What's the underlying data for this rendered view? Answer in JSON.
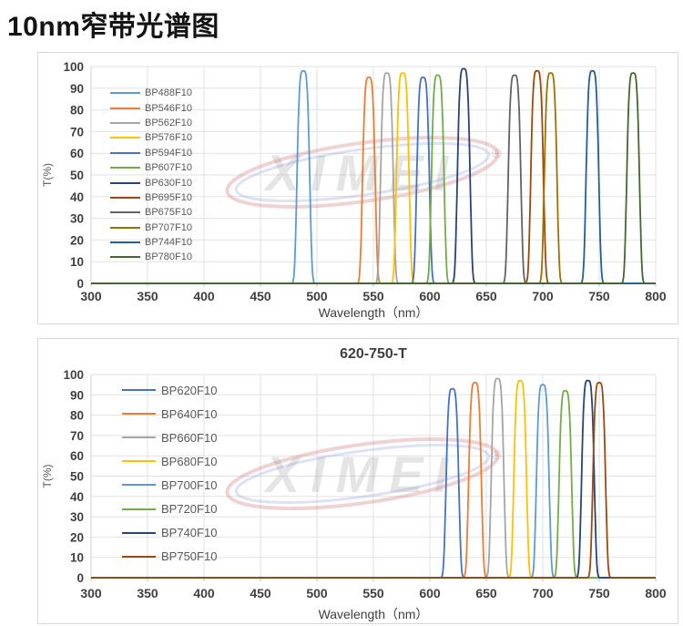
{
  "page": {
    "title": "10nm窄带光谱图"
  },
  "watermark": {
    "text": "XIMEI",
    "registered_mark": "®"
  },
  "chart_data": [
    {
      "type": "line",
      "id": "top",
      "title": "",
      "xlabel": "Wavelength（nm）",
      "ylabel": "T(%)",
      "xlim": [
        300,
        800
      ],
      "ylim": [
        0,
        100
      ],
      "x_ticks": [
        300,
        350,
        400,
        450,
        500,
        550,
        600,
        650,
        700,
        750,
        800
      ],
      "y_ticks": [
        0,
        10,
        20,
        30,
        40,
        50,
        60,
        70,
        80,
        90,
        100
      ],
      "grid": true,
      "legend_position": "upper-left-inside",
      "bandwidth_fwhm_nm": 10,
      "series": [
        {
          "name": "BP488F10",
          "color": "#5B9BD5",
          "center_nm": 488,
          "peak_T": 98
        },
        {
          "name": "BP546F10",
          "color": "#ED7D31",
          "center_nm": 546,
          "peak_T": 95
        },
        {
          "name": "BP562F10",
          "color": "#A5A5A5",
          "center_nm": 562,
          "peak_T": 97
        },
        {
          "name": "BP576F10",
          "color": "#FFC000",
          "center_nm": 576,
          "peak_T": 97
        },
        {
          "name": "BP594F10",
          "color": "#4472C4",
          "center_nm": 594,
          "peak_T": 95
        },
        {
          "name": "BP607F10",
          "color": "#70AD47",
          "center_nm": 607,
          "peak_T": 96
        },
        {
          "name": "BP630F10",
          "color": "#264478",
          "center_nm": 630,
          "peak_T": 99
        },
        {
          "name": "BP695F10",
          "color": "#9E480E",
          "center_nm": 695,
          "peak_T": 98
        },
        {
          "name": "BP675F10",
          "color": "#636363",
          "center_nm": 675,
          "peak_T": 96
        },
        {
          "name": "BP707F10",
          "color": "#997300",
          "center_nm": 707,
          "peak_T": 97
        },
        {
          "name": "BP744F10",
          "color": "#255E91",
          "center_nm": 744,
          "peak_T": 98
        },
        {
          "name": "BP780F10",
          "color": "#43682B",
          "center_nm": 780,
          "peak_T": 97
        }
      ]
    },
    {
      "type": "line",
      "id": "bottom",
      "title": "620-750-T",
      "xlabel": "Wavelength（nm）",
      "ylabel": "T(%)",
      "xlim": [
        300,
        800
      ],
      "ylim": [
        0,
        100
      ],
      "x_ticks": [
        300,
        350,
        400,
        450,
        500,
        550,
        600,
        650,
        700,
        750,
        800
      ],
      "y_ticks": [
        0,
        10,
        20,
        30,
        40,
        50,
        60,
        70,
        80,
        90,
        100
      ],
      "grid": true,
      "legend_position": "upper-left-inside",
      "bandwidth_fwhm_nm": 10,
      "series": [
        {
          "name": "BP620F10",
          "color": "#4472C4",
          "center_nm": 620,
          "peak_T": 93
        },
        {
          "name": "BP640F10",
          "color": "#ED7D31",
          "center_nm": 640,
          "peak_T": 96
        },
        {
          "name": "BP660F10",
          "color": "#A5A5A5",
          "center_nm": 660,
          "peak_T": 98
        },
        {
          "name": "BP680F10",
          "color": "#FFC000",
          "center_nm": 680,
          "peak_T": 97
        },
        {
          "name": "BP700F10",
          "color": "#5B9BD5",
          "center_nm": 700,
          "peak_T": 95
        },
        {
          "name": "BP720F10",
          "color": "#70AD47",
          "center_nm": 720,
          "peak_T": 92
        },
        {
          "name": "BP740F10",
          "color": "#264478",
          "center_nm": 740,
          "peak_T": 97
        },
        {
          "name": "BP750F10",
          "color": "#9E480E",
          "center_nm": 750,
          "peak_T": 96
        }
      ]
    }
  ]
}
